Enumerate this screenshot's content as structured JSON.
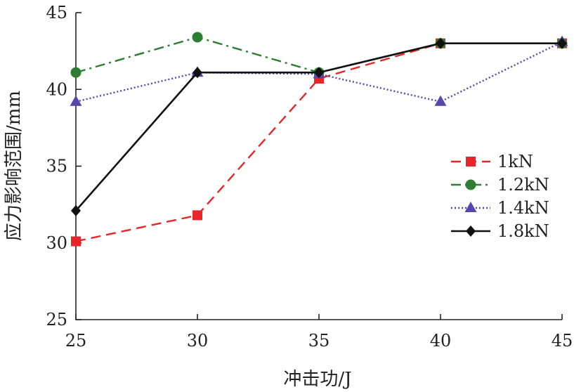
{
  "chart_data": {
    "type": "line",
    "xlabel": "冲击功/J",
    "ylabel": "应力影响范围/mm",
    "xlim": [
      25,
      45
    ],
    "ylim": [
      25,
      45
    ],
    "x_ticks": [
      "25",
      "30",
      "35",
      "40",
      "45"
    ],
    "y_ticks": [
      "25",
      "30",
      "35",
      "40",
      "45"
    ],
    "x": [
      25,
      30,
      35,
      40,
      45
    ],
    "grid": false,
    "legend_position": "right",
    "series": [
      {
        "name": "1kN",
        "values": [
          30.1,
          31.8,
          40.7,
          43.0,
          43.0
        ],
        "color": "#e8262a",
        "dash": "dashed",
        "marker": "square"
      },
      {
        "name": "1.2kN",
        "values": [
          41.1,
          43.4,
          41.1,
          43.0,
          43.0
        ],
        "color": "#2e7d32",
        "dash": "dash-dot",
        "marker": "circle"
      },
      {
        "name": "1.4kN",
        "values": [
          39.2,
          41.1,
          41.0,
          39.2,
          43.1
        ],
        "color": "#5546b0",
        "dash": "dotted",
        "marker": "triangle"
      },
      {
        "name": "1.8kN",
        "values": [
          32.1,
          41.1,
          41.1,
          43.0,
          43.0
        ],
        "color": "#111111",
        "dash": "solid",
        "marker": "diamond"
      }
    ]
  }
}
